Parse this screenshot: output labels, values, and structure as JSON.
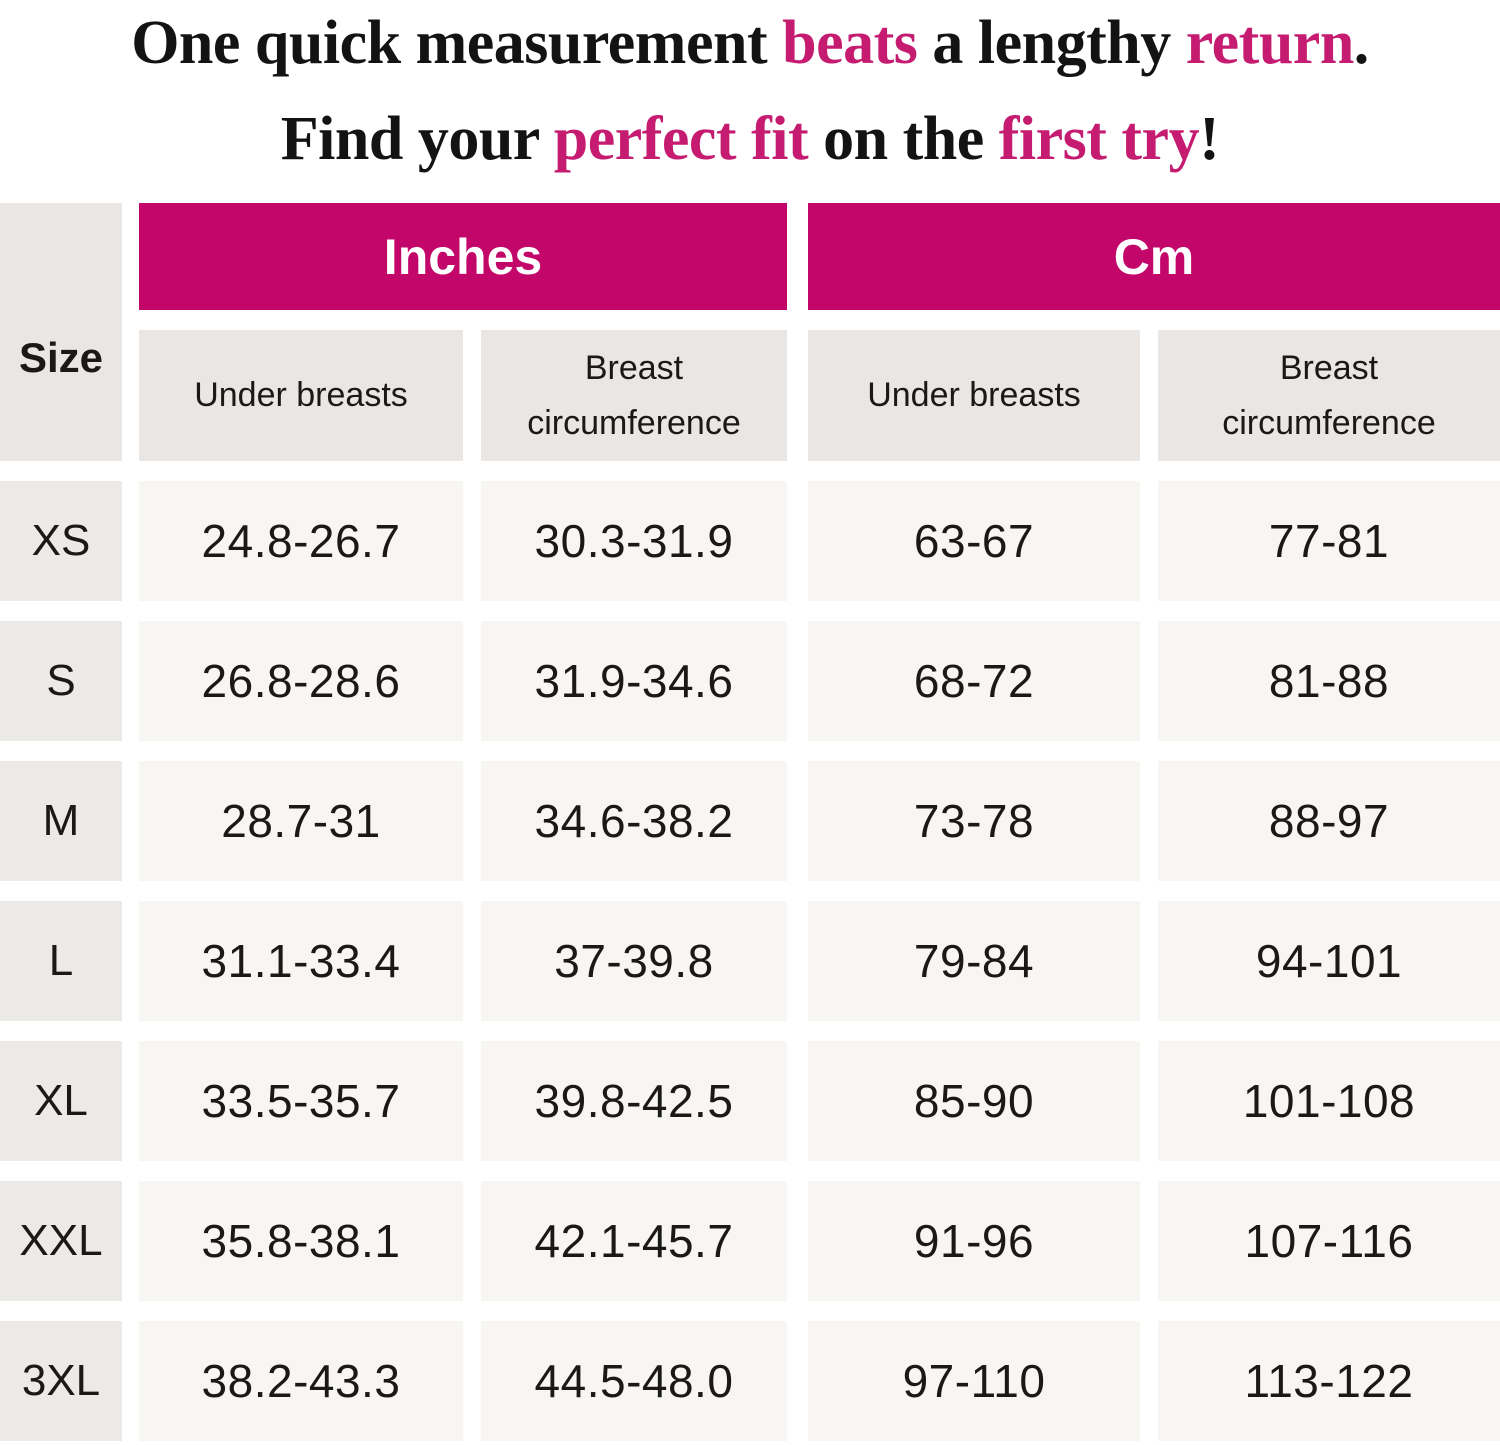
{
  "headline": {
    "line1": {
      "seg1": "One quick measurement ",
      "accent1": "beats",
      "seg2": " a lengthy ",
      "accent2": "return",
      "seg3": "."
    },
    "line2": {
      "seg1": "Find your ",
      "accent1": "perfect fit",
      "seg2": " on the ",
      "accent2": "first try",
      "seg3": "!"
    }
  },
  "table": {
    "size_label": "Size",
    "units": {
      "inches": "Inches",
      "cm": "Cm"
    },
    "col_headers": [
      "Under breasts",
      "Breast circumference",
      "Under breasts",
      "Breast circumference"
    ],
    "rows": [
      {
        "size": "XS",
        "in_under": "24.8-26.7",
        "in_bust": "30.3-31.9",
        "cm_under": "63-67",
        "cm_bust": "77-81"
      },
      {
        "size": "S",
        "in_under": "26.8-28.6",
        "in_bust": "31.9-34.6",
        "cm_under": "68-72",
        "cm_bust": "81-88"
      },
      {
        "size": "M",
        "in_under": "28.7-31",
        "in_bust": "34.6-38.2",
        "cm_under": "73-78",
        "cm_bust": "88-97"
      },
      {
        "size": "L",
        "in_under": "31.1-33.4",
        "in_bust": "37-39.8",
        "cm_under": "79-84",
        "cm_bust": "94-101"
      },
      {
        "size": "XL",
        "in_under": "33.5-35.7",
        "in_bust": "39.8-42.5",
        "cm_under": "85-90",
        "cm_bust": "101-108"
      },
      {
        "size": "XXL",
        "in_under": "35.8-38.1",
        "in_bust": "42.1-45.7",
        "cm_under": "91-96",
        "cm_bust": "107-116"
      },
      {
        "size": "3XL",
        "in_under": "38.2-43.3",
        "in_bust": "44.5-48.0",
        "cm_under": "97-110",
        "cm_bust": "113-122"
      }
    ]
  },
  "colors": {
    "accent_pink": "#c2066a",
    "headline_pink": "#c51b70",
    "header_gray": "#e9e6e3",
    "size_cell_gray": "#eceae7",
    "cell_bg": "#f7f6f3",
    "text_dark": "#1a1918",
    "unit_header_text": "#ffffff"
  }
}
